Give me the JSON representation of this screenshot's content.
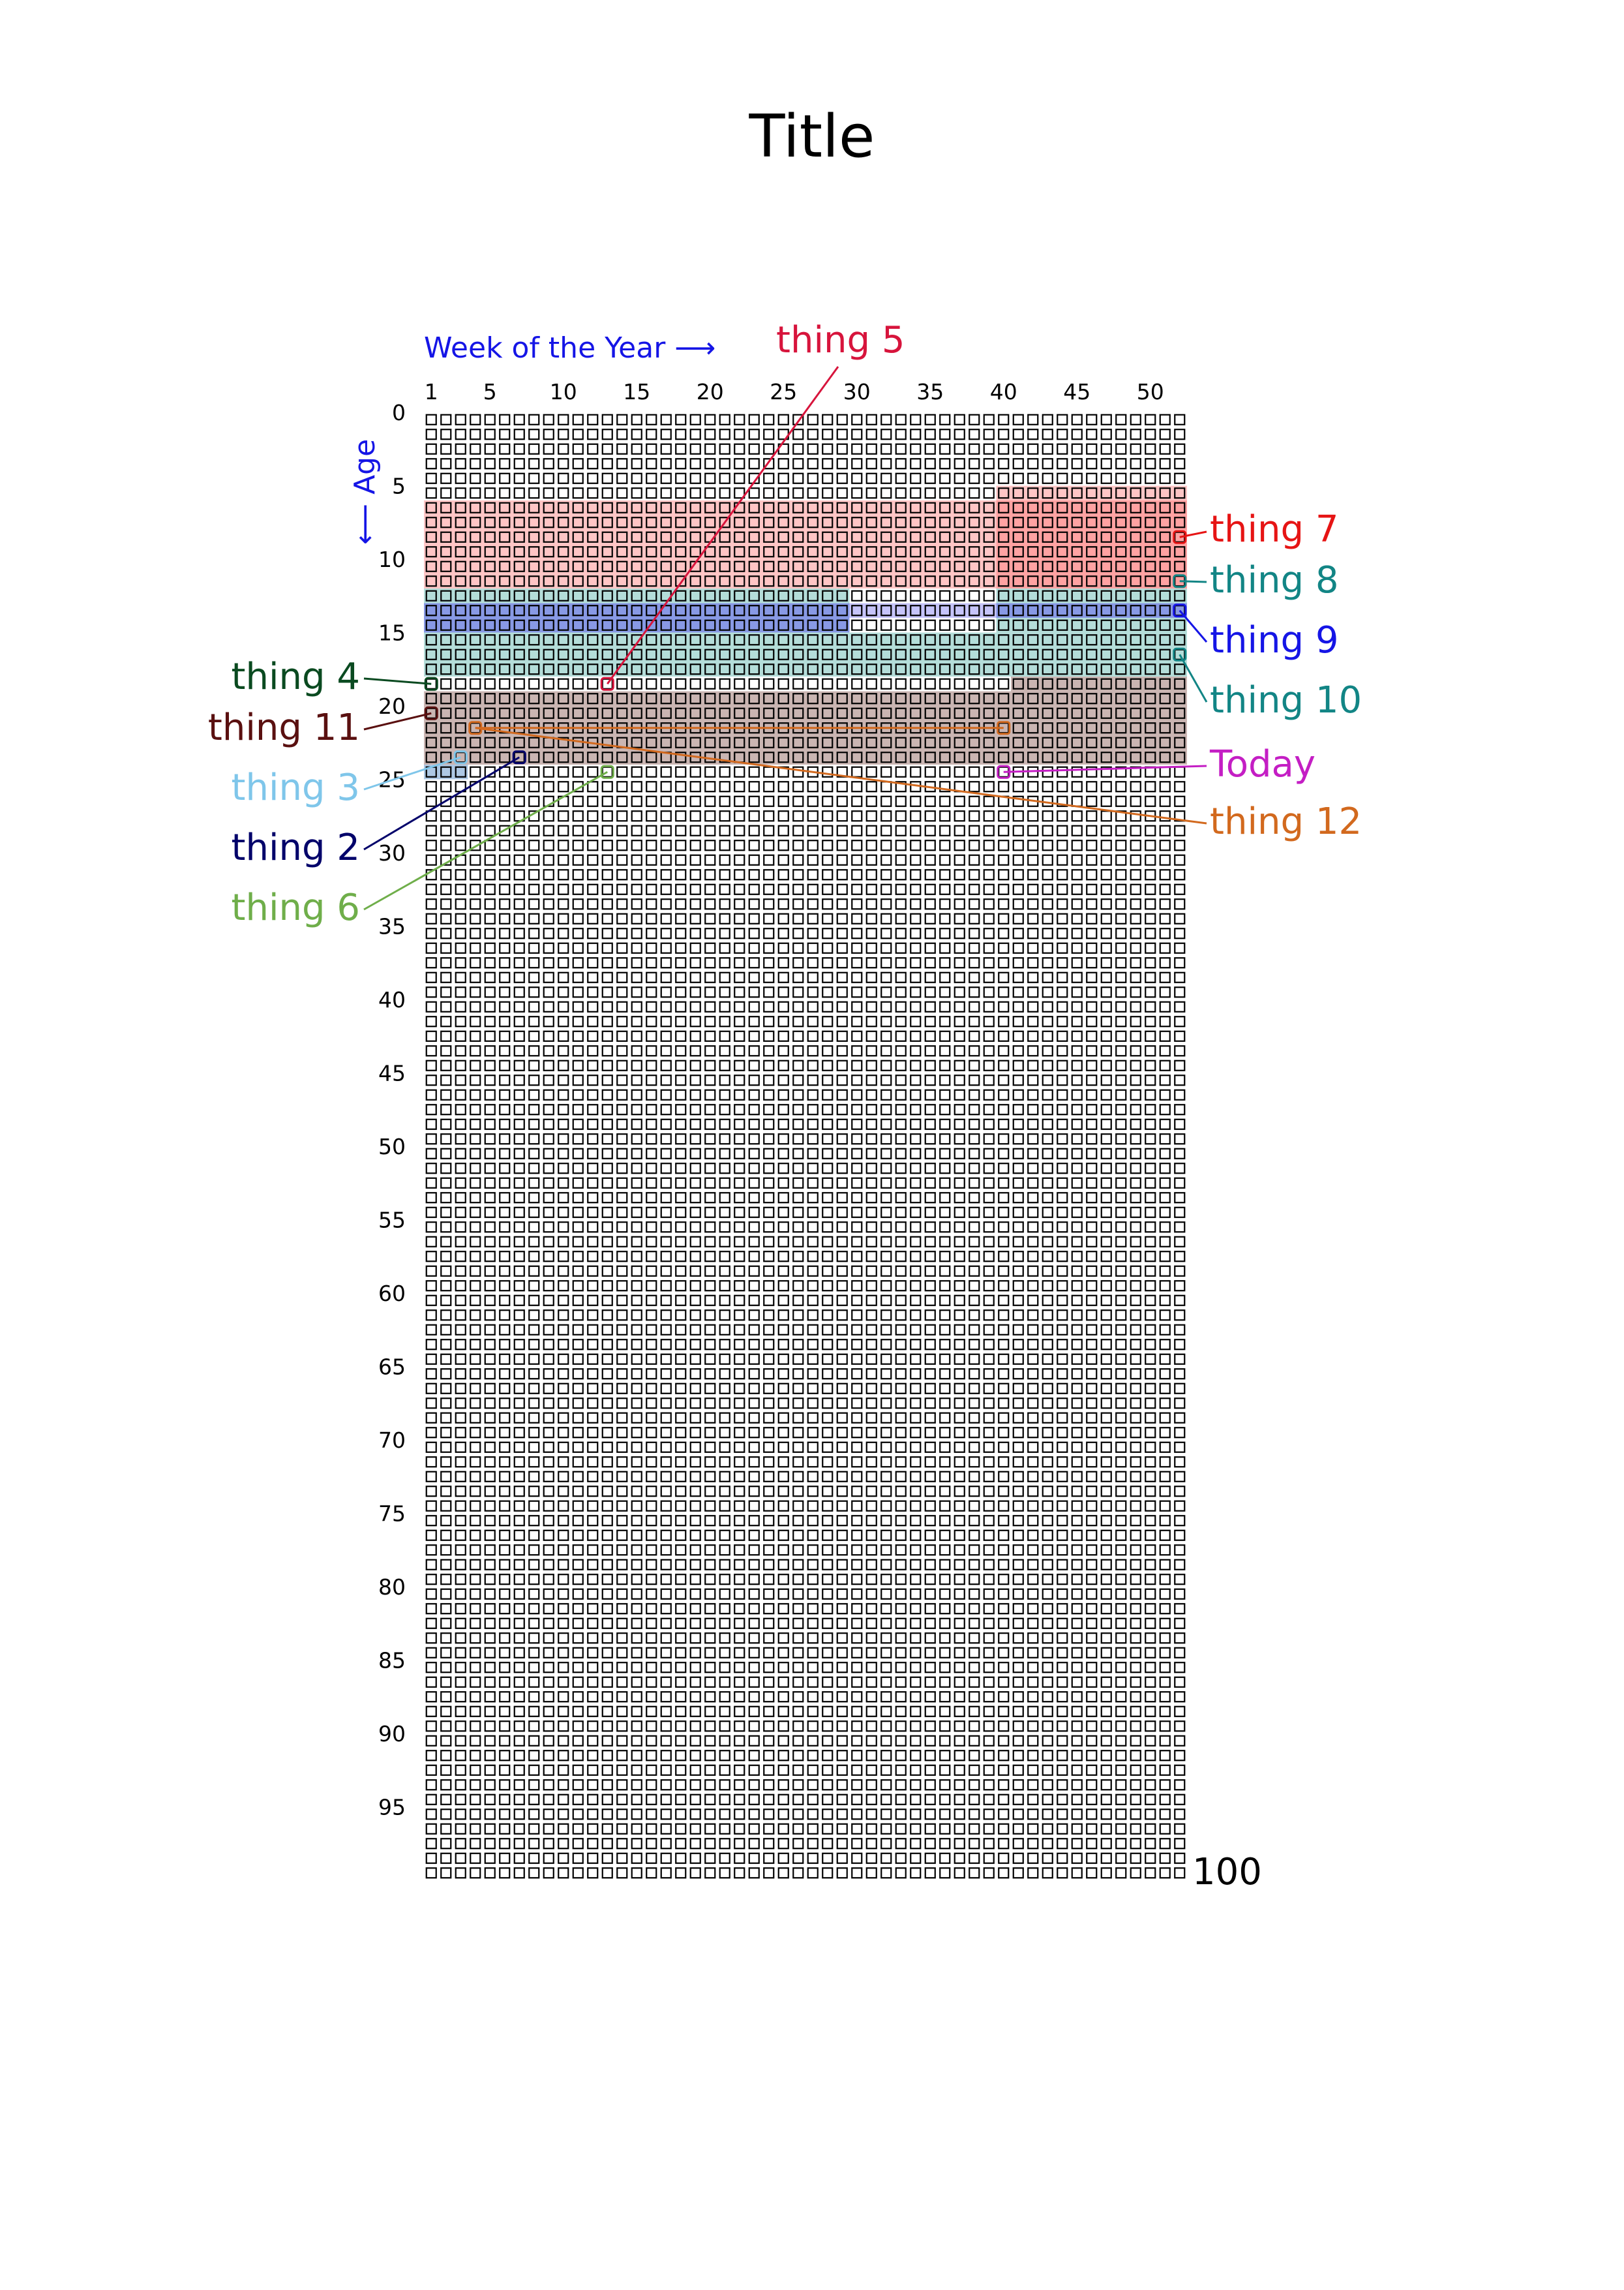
{
  "title": "Title",
  "x_axis": {
    "label": "Week of the Year ⟶",
    "ticks": [
      1,
      5,
      10,
      15,
      20,
      25,
      30,
      35,
      40,
      45,
      50
    ],
    "weeks": 52,
    "color": "#1515e6"
  },
  "y_axis": {
    "label": "⟵ Age",
    "ticks": [
      0,
      5,
      10,
      15,
      20,
      25,
      30,
      35,
      40,
      45,
      50,
      55,
      60,
      65,
      70,
      75,
      80,
      85,
      90,
      95
    ],
    "years": 100,
    "end_label": "100",
    "color": "#1515e6"
  },
  "periods": [
    {
      "from": {
        "year": 5,
        "week": 40
      },
      "to": {
        "year": 11,
        "week": 52
      },
      "color": "#ff6f6f",
      "opacity": 0.4
    },
    {
      "from": {
        "year": 6,
        "week": 1
      },
      "to": {
        "year": 11,
        "week": 52
      },
      "color": "#ff6f6f",
      "opacity": 0.4
    },
    {
      "from": {
        "year": 12,
        "week": 1
      },
      "to": {
        "year": 17,
        "week": 29
      },
      "color": "#3aa69a",
      "opacity": 0.38
    },
    {
      "from": {
        "year": 12,
        "week": 40
      },
      "to": {
        "year": 17,
        "week": 52
      },
      "color": "#3aa69a",
      "opacity": 0.38
    },
    {
      "from": {
        "year": 15,
        "week": 30
      },
      "to": {
        "year": 17,
        "week": 39
      },
      "color": "#3aa69a",
      "opacity": 0.38
    },
    {
      "from": {
        "year": 13,
        "week": 1
      },
      "to": {
        "year": 14,
        "week": 29
      },
      "color": "#5b55f2",
      "opacity": 0.5
    },
    {
      "from": {
        "year": 13,
        "week": 40
      },
      "to": {
        "year": 13,
        "week": 52
      },
      "color": "#5b55f2",
      "opacity": 0.5
    },
    {
      "from": {
        "year": 13,
        "week": 30
      },
      "to": {
        "year": 13,
        "week": 39
      },
      "color": "#5b55f2",
      "opacity": 0.35
    },
    {
      "from": {
        "year": 19,
        "week": 1
      },
      "to": {
        "year": 23,
        "week": 52
      },
      "color": "#8a5a55",
      "opacity": 0.45
    },
    {
      "from": {
        "year": 18,
        "week": 41
      },
      "to": {
        "year": 18,
        "week": 52
      },
      "color": "#8a5a55",
      "opacity": 0.45
    },
    {
      "from": {
        "year": 24,
        "week": 1
      },
      "to": {
        "year": 24,
        "week": 3
      },
      "color": "#8bb0d8",
      "opacity": 0.7
    }
  ],
  "annotations": [
    {
      "id": "thing-5",
      "text": "thing 5",
      "color": "#d7143c",
      "target": {
        "year": 18,
        "week": 13
      },
      "side": "top"
    },
    {
      "id": "thing-7",
      "text": "thing 7",
      "color": "#e61414",
      "target": {
        "year": 8,
        "week": 52
      },
      "side": "right"
    },
    {
      "id": "thing-8",
      "text": "thing 8",
      "color": "#128585",
      "target": {
        "year": 11,
        "week": 52
      },
      "side": "right"
    },
    {
      "id": "thing-9",
      "text": "thing 9",
      "color": "#1515e6",
      "target": {
        "year": 13,
        "week": 52
      },
      "side": "right"
    },
    {
      "id": "thing-10",
      "text": "thing 10",
      "color": "#128585",
      "target": {
        "year": 16,
        "week": 52
      },
      "side": "right"
    },
    {
      "id": "today",
      "text": "Today",
      "color": "#c41ec4",
      "target": {
        "year": 24,
        "week": 40
      },
      "side": "right"
    },
    {
      "id": "thing-12",
      "text": "thing 12",
      "color": "#d2691e",
      "target": {
        "year": 21,
        "week": 40
      },
      "via": {
        "year": 21,
        "week": 4
      },
      "side": "right"
    },
    {
      "id": "thing-4",
      "text": "thing 4",
      "color": "#0a4a20",
      "target": {
        "year": 18,
        "week": 1
      },
      "side": "left"
    },
    {
      "id": "thing-11",
      "text": "thing 11",
      "color": "#5a1010",
      "target": {
        "year": 20,
        "week": 1
      },
      "side": "left"
    },
    {
      "id": "thing-3",
      "text": "thing 3",
      "color": "#7fc6ea",
      "target": {
        "year": 23,
        "week": 3
      },
      "side": "left"
    },
    {
      "id": "thing-2",
      "text": "thing 2",
      "color": "#00006a",
      "target": {
        "year": 23,
        "week": 7
      },
      "side": "left"
    },
    {
      "id": "thing-6",
      "text": "thing 6",
      "color": "#6fae4a",
      "target": {
        "year": 24,
        "week": 13
      },
      "side": "left"
    }
  ]
}
